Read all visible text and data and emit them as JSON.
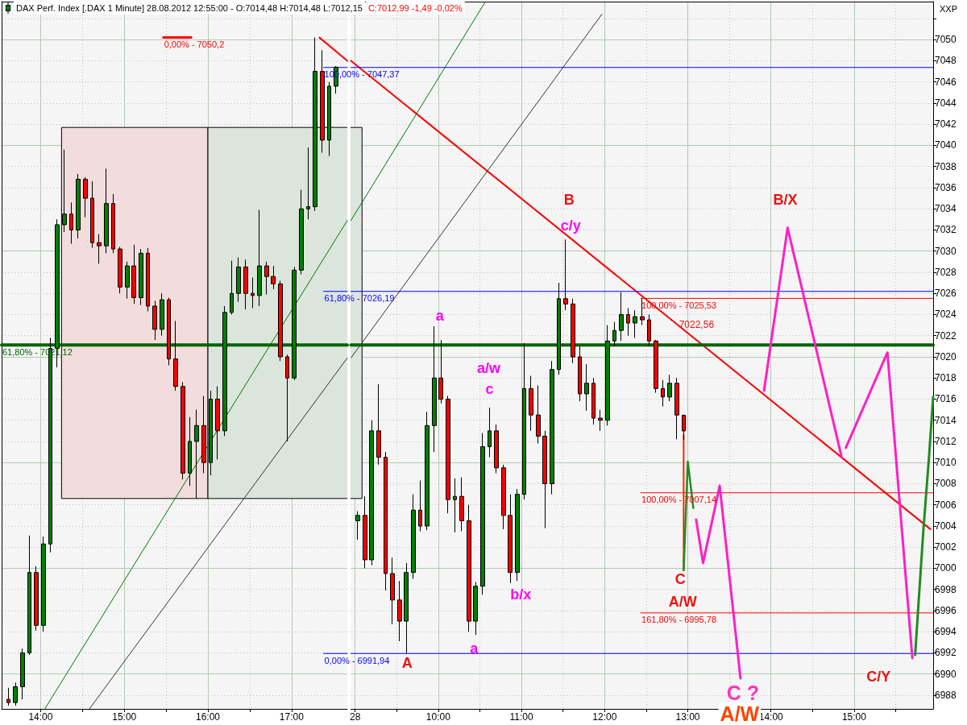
{
  "chart_data": [
    {
      "type": "candlestick",
      "title": "DAX Perf. Index [.DAX 1 Minute] 28.08.2012 12:55:00 - O:7014,48 H:7014,48 L:7012,15",
      "x": [
        "2012-08-27T13:37",
        "2012-08-27T13:42",
        "2012-08-27T13:47",
        "2012-08-27T13:52",
        "2012-08-27T13:57",
        "2012-08-27T14:02",
        "2012-08-27T14:07",
        "2012-08-27T14:12",
        "2012-08-27T14:17",
        "2012-08-27T14:22",
        "2012-08-27T14:27",
        "2012-08-27T14:32",
        "2012-08-27T14:37",
        "2012-08-27T14:42",
        "2012-08-27T14:47",
        "2012-08-27T14:52",
        "2012-08-27T14:57",
        "2012-08-27T15:02",
        "2012-08-27T15:07",
        "2012-08-27T15:12",
        "2012-08-27T15:17",
        "2012-08-27T15:22",
        "2012-08-27T15:27",
        "2012-08-27T15:32",
        "2012-08-27T15:37",
        "2012-08-27T15:42",
        "2012-08-27T15:47",
        "2012-08-27T15:52",
        "2012-08-27T15:57",
        "2012-08-27T16:02",
        "2012-08-27T16:07",
        "2012-08-27T16:12",
        "2012-08-27T16:17",
        "2012-08-27T16:22",
        "2012-08-27T16:27",
        "2012-08-27T16:32",
        "2012-08-27T16:37",
        "2012-08-27T16:42",
        "2012-08-27T16:47",
        "2012-08-27T16:52",
        "2012-08-27T16:57",
        "2012-08-27T17:02",
        "2012-08-27T17:07",
        "2012-08-27T17:12",
        "2012-08-27T17:17",
        "2012-08-27T17:22",
        "2012-08-27T17:27",
        "2012-08-27T17:32"
      ],
      "ohlc": [
        [
          6987.6,
          6988.7,
          6987.0,
          6987.3
        ],
        [
          6987.3,
          6989.2,
          6987.0,
          6988.8
        ],
        [
          6988.8,
          6992.4,
          6987.6,
          6992.0
        ],
        [
          6992.0,
          7003.1,
          6991.8,
          6999.6
        ],
        [
          6999.6,
          7000.2,
          6994.1,
          6994.6
        ],
        [
          6994.6,
          7003.0,
          6994.0,
          7002.3
        ],
        [
          7002.3,
          7021.8,
          7001.5,
          7020.8
        ],
        [
          7020.8,
          7033.0,
          7019.0,
          7032.5
        ],
        [
          7032.5,
          7039.6,
          7031.8,
          7033.5
        ],
        [
          7033.5,
          7034.6,
          7030.7,
          7032.0
        ],
        [
          7032.0,
          7037.3,
          7031.2,
          7036.8
        ],
        [
          7036.8,
          7037.0,
          7033.2,
          7035.0
        ],
        [
          7035.0,
          7036.6,
          7030.3,
          7030.8
        ],
        [
          7030.8,
          7031.6,
          7028.8,
          7030.5
        ],
        [
          7030.5,
          7037.8,
          7029.8,
          7034.5
        ],
        [
          7034.5,
          7035.4,
          7029.8,
          7030.2
        ],
        [
          7030.2,
          7030.4,
          7026.0,
          7026.6
        ],
        [
          7026.6,
          7029.0,
          7025.5,
          7028.6
        ],
        [
          7028.6,
          7030.6,
          7025.0,
          7025.6
        ],
        [
          7025.6,
          7030.2,
          7024.9,
          7029.8
        ],
        [
          7029.8,
          7030.3,
          7024.3,
          7024.8
        ],
        [
          7024.8,
          7025.3,
          7021.6,
          7022.6
        ],
        [
          7022.6,
          7026.0,
          7022.0,
          7025.4
        ],
        [
          7025.4,
          7025.6,
          7019.2,
          7019.8
        ],
        [
          7019.8,
          7023.4,
          7016.8,
          7017.2
        ],
        [
          7017.2,
          7017.6,
          7008.4,
          7009.0
        ],
        [
          7009.0,
          7014.3,
          7007.8,
          7012.0
        ],
        [
          7012.0,
          7015.0,
          7006.6,
          7013.5
        ],
        [
          7013.5,
          7016.3,
          7009.0,
          7010.0
        ],
        [
          7010.0,
          7016.8,
          7008.8,
          7016.0
        ],
        [
          7016.0,
          7017.2,
          7010.3,
          7013.0
        ],
        [
          7013.0,
          7024.8,
          7012.5,
          7024.2
        ],
        [
          7024.2,
          7029.1,
          7024.0,
          7026.0
        ],
        [
          7026.0,
          7029.4,
          7025.2,
          7028.5
        ],
        [
          7028.5,
          7029.2,
          7024.5,
          7026.0
        ],
        [
          7026.0,
          7027.5,
          7024.6,
          7025.8
        ],
        [
          7025.8,
          7033.9,
          7024.8,
          7028.6
        ],
        [
          7028.6,
          7029.0,
          7025.9,
          7027.6
        ],
        [
          7027.6,
          7028.6,
          7026.4,
          7026.9
        ],
        [
          7026.9,
          7027.2,
          7019.6,
          7020.0
        ],
        [
          7020.0,
          7020.2,
          7012.0,
          7018.0
        ],
        [
          7018.0,
          7028.5,
          7017.8,
          7028.2
        ],
        [
          7028.2,
          7035.8,
          7027.8,
          7034.0
        ],
        [
          7034.0,
          7039.8,
          7033.0,
          7034.2
        ],
        [
          7034.2,
          7050.2,
          7033.8,
          7047.0
        ],
        [
          7047.0,
          7049.0,
          7039.3,
          7040.5
        ],
        [
          7040.5,
          7046.0,
          7039.0,
          7045.6
        ],
        [
          7045.6,
          7047.5,
          7044.9,
          7047.4
        ]
      ],
      "colors": [
        "#ff0000",
        "#008000",
        "#008000",
        "#008000",
        "#ff0000",
        "#008000",
        "#008000",
        "#008000",
        "#008000",
        "#ff0000",
        "#008000",
        "#ff0000",
        "#ff0000",
        "#ff0000",
        "#008000",
        "#ff0000",
        "#ff0000",
        "#008000",
        "#ff0000",
        "#008000",
        "#ff0000",
        "#ff0000",
        "#008000",
        "#ff0000",
        "#ff0000",
        "#ff0000",
        "#008000",
        "#008000",
        "#ff0000",
        "#008000",
        "#ff0000",
        "#008000",
        "#008000",
        "#008000",
        "#ff0000",
        "#ff0000",
        "#008000",
        "#ff0000",
        "#ff0000",
        "#ff0000",
        "#ff0000",
        "#008000",
        "#008000",
        "#008000",
        "#008000",
        "#ff0000",
        "#008000",
        "#008000"
      ],
      "series": [
        {
          "type": "histogram",
          "bins": [
            "2012-08-27T14:15",
            "2012-08-27T16:00",
            "2012-08-27T17:40"
          ],
          "values": [
            35.1,
            35.1
          ],
          "base": [
            7006.6,
            7006.6
          ],
          "colors": [
            "#f2dcdc",
            "#dce5dc"
          ]
        },
        {
          "type": "line",
          "x": [
            "2012-08-27T17:20",
            "2012-08-27T17:40"
          ],
          "values": [
            7050.2,
            7048.0
          ],
          "color": "#ff0000"
        },
        {
          "type": "line",
          "x": [
            "2012-08-27T14:03",
            "2012-08-27T17:40"
          ],
          "values": [
            6986.7,
            7032.9
          ],
          "color": "#007800"
        },
        {
          "type": "line",
          "x": [
            "2012-08-27T14:35",
            "2012-08-27T17:40"
          ],
          "values": [
            6986.7,
            7019.9
          ],
          "color": "#333333"
        },
        {
          "type": "line",
          "name": "0,00% - 7050,2",
          "x": [
            "2012-08-27T15:28",
            "2012-08-27T15:48"
          ],
          "values": [
            7050.2,
            7050.2
          ],
          "color": "#ff0000"
        },
        {
          "type": "line",
          "name": "100,00% - 7047,37",
          "x": [
            "2012-08-27T17:23",
            "2012-08-27T17:40"
          ],
          "values": [
            7047.37,
            7047.37
          ],
          "color": "#0000ff"
        },
        {
          "type": "line",
          "name": "61,80% - 7026,19",
          "x": [
            "2012-08-27T17:23",
            "2012-08-27T17:40"
          ],
          "values": [
            7026.19,
            7026.19
          ],
          "color": "#0000ff"
        },
        {
          "type": "line",
          "name": "0,00% - 6991,94",
          "x": [
            "2012-08-27T17:23",
            "2012-08-27T17:40"
          ],
          "values": [
            6991.94,
            6991.94
          ],
          "color": "#0000ff"
        },
        {
          "type": "line",
          "name": "61,80% - 7021,12",
          "x": [
            "2012-08-27T13:32",
            "2012-08-27T17:40"
          ],
          "values": [
            7021.12,
            7021.12
          ],
          "color": "#006400"
        }
      ],
      "xlim": [
        "2012-08-27T13:32",
        "2012-08-27T17:40"
      ],
      "ylim": [
        6986.7,
        7053.6
      ],
      "xticks": [
        {
          "value": "2012-08-27T14:00",
          "label": "14:00"
        },
        {
          "value": "2012-08-27T14:30",
          "label": null
        },
        {
          "value": "2012-08-27T15:00",
          "label": "15:00"
        },
        {
          "value": "2012-08-27T15:30",
          "label": null
        },
        {
          "value": "2012-08-27T16:00",
          "label": "16:00"
        },
        {
          "value": "2012-08-27T16:30",
          "label": null
        },
        {
          "value": "2012-08-27T17:00",
          "label": "17:00"
        }
      ],
      "yticks": [
        6988,
        6990,
        6992,
        6994,
        6996,
        6998,
        7000,
        7002,
        7004,
        7006,
        7008,
        7010,
        7012,
        7014,
        7016,
        7018,
        7020,
        7022,
        7024,
        7026,
        7028,
        7030,
        7032,
        7034,
        7036,
        7038,
        7040,
        7042,
        7044,
        7046,
        7048,
        7050,
        {
          "value": 7052,
          "label": null
        }
      ],
      "grid": true,
      "tick_labels": "x"
    },
    {
      "type": "candlestick",
      "title": "C:7012,99 -1,49 -0,02%",
      "ylabel": "XXP",
      "x": [
        "2012-08-28T09:02",
        "2012-08-28T09:07",
        "2012-08-28T09:12",
        "2012-08-28T09:17",
        "2012-08-28T09:22",
        "2012-08-28T09:27",
        "2012-08-28T09:32",
        "2012-08-28T09:37",
        "2012-08-28T09:42",
        "2012-08-28T09:47",
        "2012-08-28T09:52",
        "2012-08-28T09:57",
        "2012-08-28T10:02",
        "2012-08-28T10:07",
        "2012-08-28T10:12",
        "2012-08-28T10:17",
        "2012-08-28T10:22",
        "2012-08-28T10:27",
        "2012-08-28T10:32",
        "2012-08-28T10:37",
        "2012-08-28T10:42",
        "2012-08-28T10:47",
        "2012-08-28T10:52",
        "2012-08-28T10:57",
        "2012-08-28T11:02",
        "2012-08-28T11:07",
        "2012-08-28T11:12",
        "2012-08-28T11:17",
        "2012-08-28T11:22",
        "2012-08-28T11:27",
        "2012-08-28T11:32",
        "2012-08-28T11:37",
        "2012-08-28T11:42",
        "2012-08-28T11:47",
        "2012-08-28T11:52",
        "2012-08-28T11:57",
        "2012-08-28T12:02",
        "2012-08-28T12:07",
        "2012-08-28T12:12",
        "2012-08-28T12:17",
        "2012-08-28T12:22",
        "2012-08-28T12:27",
        "2012-08-28T12:32",
        "2012-08-28T12:37",
        "2012-08-28T12:42",
        "2012-08-28T12:47",
        "2012-08-28T12:52",
        "2012-08-28T12:57"
      ],
      "ohlc": [
        [
          7004.5,
          7005.4,
          7002.7,
          7005.0
        ],
        [
          7005.0,
          7006.8,
          7000.0,
          7000.8
        ],
        [
          7000.8,
          7014.0,
          7000.3,
          7013.0
        ],
        [
          7013.0,
          7017.4,
          7009.8,
          7010.5
        ],
        [
          7010.5,
          7011.0,
          6997.9,
          6999.5
        ],
        [
          6999.5,
          7001.0,
          6994.7,
          6997.0
        ],
        [
          6997.0,
          6998.8,
          6993.1,
          6995.0
        ],
        [
          6995.0,
          7000.5,
          6991.94,
          6999.6
        ],
        [
          6999.6,
          7007.0,
          6999.0,
          7005.5
        ],
        [
          7005.5,
          7008.3,
          7003.5,
          7004.0
        ],
        [
          7004.0,
          7014.8,
          7003.6,
          7013.5
        ],
        [
          7013.5,
          7022.9,
          7011.0,
          7018.0
        ],
        [
          7018.0,
          7021.6,
          7015.6,
          7016.0
        ],
        [
          7016.0,
          7016.3,
          7005.2,
          7006.5
        ],
        [
          7006.5,
          7008.5,
          7003.4,
          7006.8
        ],
        [
          7006.8,
          7008.6,
          7003.5,
          7004.5
        ],
        [
          7004.5,
          7006.0,
          6994.0,
          6995.0
        ],
        [
          6995.0,
          6998.7,
          6993.7,
          6998.3
        ],
        [
          6998.3,
          7012.8,
          6997.5,
          7011.5
        ],
        [
          7011.5,
          7015.2,
          7010.5,
          7013.0
        ],
        [
          7013.0,
          7013.6,
          7009.0,
          7009.5
        ],
        [
          7009.5,
          7009.8,
          7003.7,
          7005.0
        ],
        [
          7005.0,
          7007.0,
          6998.6,
          6999.6
        ],
        [
          6999.6,
          7007.5,
          6998.8,
          7007.0
        ],
        [
          7007.0,
          7021.3,
          7006.5,
          7017.0
        ],
        [
          7017.0,
          7018.2,
          7013.0,
          7014.5
        ],
        [
          7014.5,
          7017.3,
          7011.8,
          7012.5
        ],
        [
          7012.5,
          7013.0,
          7003.8,
          7008.0
        ],
        [
          7008.0,
          7019.6,
          7007.0,
          7018.8
        ],
        [
          7018.8,
          7027.0,
          7018.3,
          7025.5
        ],
        [
          7025.5,
          7031.1,
          7024.4,
          7025.0
        ],
        [
          7025.0,
          7025.5,
          7019.4,
          7020.0
        ],
        [
          7020.0,
          7021.0,
          7015.8,
          7016.5
        ],
        [
          7016.5,
          7019.3,
          7014.9,
          7017.5
        ],
        [
          7017.5,
          7018.0,
          7013.6,
          7014.2
        ],
        [
          7014.2,
          7015.0,
          7013.0,
          7014.0
        ],
        [
          7014.0,
          7023.0,
          7013.5,
          7021.5
        ],
        [
          7021.5,
          7023.3,
          7021.0,
          7022.5
        ],
        [
          7022.5,
          7026.1,
          7021.5,
          7024.0
        ],
        [
          7024.0,
          7024.6,
          7022.0,
          7023.2
        ],
        [
          7023.2,
          7024.4,
          7021.8,
          7023.8
        ],
        [
          7023.8,
          7025.53,
          7023.0,
          7023.5
        ],
        [
          7023.5,
          7024.0,
          7021.0,
          7021.5
        ],
        [
          7021.5,
          7021.6,
          7016.6,
          7017.0
        ],
        [
          7017.0,
          7017.8,
          7015.3,
          7016.2
        ],
        [
          7016.2,
          7018.3,
          7015.8,
          7017.5
        ],
        [
          7017.5,
          7018.0,
          7012.2,
          7014.5
        ],
        [
          7014.48,
          7014.48,
          7012.15,
          7012.99
        ]
      ],
      "colors": [
        "#008000",
        "#ff0000",
        "#008000",
        "#ff0000",
        "#ff0000",
        "#ff0000",
        "#ff0000",
        "#008000",
        "#008000",
        "#ff0000",
        "#008000",
        "#008000",
        "#ff0000",
        "#ff0000",
        "#008000",
        "#ff0000",
        "#ff0000",
        "#008000",
        "#008000",
        "#008000",
        "#ff0000",
        "#ff0000",
        "#ff0000",
        "#008000",
        "#008000",
        "#ff0000",
        "#ff0000",
        "#ff0000",
        "#008000",
        "#008000",
        "#ff0000",
        "#ff0000",
        "#ff0000",
        "#008000",
        "#ff0000",
        "#ff0000",
        "#008000",
        "#008000",
        "#008000",
        "#ff0000",
        "#008000",
        "#ff0000",
        "#ff0000",
        "#ff0000",
        "#ff0000",
        "#008000",
        "#ff0000",
        "#ff0000"
      ],
      "series": [
        {
          "type": "histogram",
          "bins": [
            "2012-08-28T08:57",
            "2012-08-28T09:05"
          ],
          "values": [
            35.1
          ],
          "base": [
            7006.6
          ],
          "colors": [
            "#dce5dc"
          ]
        },
        {
          "type": "line",
          "x": [
            "2012-08-28T08:57",
            "2012-08-28T15:55"
          ],
          "values": [
            7048.0,
            7003.7
          ],
          "color": "#ff0000"
        },
        {
          "type": "line",
          "x": [
            "2012-08-28T08:57",
            "2012-08-28T10:34"
          ],
          "values": [
            7032.9,
            7053.6
          ],
          "color": "#007800"
        },
        {
          "type": "line",
          "x": [
            "2012-08-28T08:57",
            "2012-08-28T11:58"
          ],
          "values": [
            7019.9,
            7052.4
          ],
          "color": "#333333"
        },
        {
          "type": "line",
          "x": [
            "2012-08-28T08:57",
            "2012-08-28T15:57"
          ],
          "values": [
            7047.37,
            7047.37
          ],
          "color": "#0000ff"
        },
        {
          "type": "line",
          "x": [
            "2012-08-28T08:57",
            "2012-08-28T15:57"
          ],
          "values": [
            7026.19,
            7026.19
          ],
          "color": "#0000ff"
        },
        {
          "type": "line",
          "x": [
            "2012-08-28T08:57",
            "2012-08-28T15:57"
          ],
          "values": [
            6991.94,
            6991.94
          ],
          "color": "#0000ff"
        },
        {
          "type": "line",
          "x": [
            "2012-08-28T08:57",
            "2012-08-28T15:57"
          ],
          "values": [
            7021.12,
            7021.12
          ],
          "color": "#006400"
        },
        {
          "type": "line",
          "name": "100,00% - 7025,53",
          "x": [
            "2012-08-28T12:26",
            "2012-08-28T15:57"
          ],
          "values": [
            7025.53,
            7025.53
          ],
          "color": "#ff0000"
        },
        {
          "type": "line",
          "name": "100,00% - 7007,14",
          "x": [
            "2012-08-28T12:26",
            "2012-08-28T15:57"
          ],
          "values": [
            7007.14,
            7007.14
          ],
          "color": "#ff0000"
        },
        {
          "type": "line",
          "name": "161,80% - 6995,78",
          "x": [
            "2012-08-28T12:26",
            "2012-08-28T15:57"
          ],
          "values": [
            6995.78,
            6995.78
          ],
          "color": "#ff0000"
        },
        {
          "type": "line",
          "x": [
            "2012-08-28T12:57",
            "2012-08-28T12:57"
          ],
          "values": [
            7012.6,
            6999.8
          ],
          "color": "#ff2200"
        },
        {
          "type": "line",
          "x": [
            "2012-08-28T12:57",
            "2012-08-28T13:00",
            "2012-08-28T13:04"
          ],
          "values": [
            6999.8,
            7010.1,
            7005.7
          ],
          "color": "#228b22"
        },
        {
          "type": "line",
          "x": [
            "2012-08-28T13:06",
            "2012-08-28T13:11",
            "2012-08-28T13:23",
            "2012-08-28T13:38"
          ],
          "values": [
            7004.6,
            7000.5,
            7007.8,
            6989.6
          ],
          "color": "#ff1fc6"
        },
        {
          "type": "line",
          "x": [
            "2012-08-28T13:55",
            "2012-08-28T14:12",
            "2012-08-28T14:51"
          ],
          "values": [
            7016.8,
            7032.2,
            7010.5
          ],
          "color": "#ff1fc6"
        },
        {
          "type": "line",
          "x": [
            "2012-08-28T14:54",
            "2012-08-28T15:24",
            "2012-08-28T15:42"
          ],
          "values": [
            7011.4,
            7020.4,
            6991.5
          ],
          "color": "#ff1fc6"
        },
        {
          "type": "line",
          "x": [
            "2012-08-28T15:44",
            "2012-08-28T15:46",
            "2012-08-28T15:50",
            "2012-08-28T15:54",
            "2012-08-28T15:57"
          ],
          "values": [
            6991.8,
            6995.8,
            7003.7,
            7010.5,
            7016.2
          ],
          "color": "#228b22"
        }
      ],
      "annotations": [
        {
          "text": "B",
          "x": "2012-08-28T11:32",
          "y": 7031.1
        },
        {
          "text": "c/y",
          "x": "2012-08-28T11:32",
          "y": 7031.1
        },
        {
          "text": "a",
          "x": "2012-08-28T09:57",
          "y": 7022.9
        },
        {
          "text": "a/w",
          "x": "2012-08-28T10:37",
          "y": 7015.2
        },
        {
          "text": "c",
          "x": "2012-08-28T10:37",
          "y": 7015.2
        },
        {
          "text": "b/x",
          "x": "2012-08-28T10:52",
          "y": 6998.6
        },
        {
          "text": "a",
          "x": "2012-08-28T10:27",
          "y": 6993.7
        },
        {
          "text": "A",
          "x": "2012-08-28T09:37",
          "y": 6991.94
        },
        {
          "text": "C",
          "x": "2012-08-28T12:57",
          "y": 6999.8
        },
        {
          "text": "A/W",
          "x": "2012-08-28T12:57",
          "y": 6999.8
        },
        {
          "text": "7022,56",
          "x": "2012-08-28T12:57",
          "y": 7022.56
        },
        {
          "text": "B/X",
          "x": "2012-08-28T14:12",
          "y": 7032.2
        },
        {
          "text": "C/Y",
          "x": "2012-08-28T15:42",
          "y": 6991.5
        },
        {
          "text": "C ?",
          "x": "2012-08-28T13:38",
          "y": 6989.6
        },
        {
          "text": "A/W",
          "x": "2012-08-28T13:38",
          "y": 6989.6
        }
      ],
      "xlim": [
        "2012-08-28T08:57",
        "2012-08-28T15:57"
      ],
      "ylim": [
        6986.7,
        7053.6
      ],
      "xticks": [
        {
          "value": "2012-08-28T09:00",
          "label": "28"
        },
        {
          "value": "2012-08-28T09:30",
          "label": null
        },
        {
          "value": "2012-08-28T10:00",
          "label": "10:00"
        },
        {
          "value": "2012-08-28T10:30",
          "label": null
        },
        {
          "value": "2012-08-28T11:00",
          "label": "11:00"
        },
        {
          "value": "2012-08-28T11:30",
          "label": null
        },
        {
          "value": "2012-08-28T12:00",
          "label": "12:00"
        },
        {
          "value": "2012-08-28T12:30",
          "label": null
        },
        {
          "value": "2012-08-28T13:00",
          "label": "13:00"
        },
        {
          "value": "2012-08-28T13:30",
          "label": null
        },
        {
          "value": "2012-08-28T14:00",
          "label": "14:00"
        },
        {
          "value": "2012-08-28T14:30",
          "label": null
        },
        {
          "value": "2012-08-28T15:00",
          "label": "15:00"
        },
        {
          "value": "2012-08-28T15:30",
          "label": null
        }
      ],
      "yticks": [
        6988,
        6990,
        6992,
        6994,
        6996,
        6998,
        7000,
        7002,
        7004,
        7006,
        7008,
        7010,
        7012,
        7014,
        7016,
        7018,
        7020,
        7022,
        7024,
        7026,
        7028,
        7030,
        7032,
        7034,
        7036,
        7038,
        7040,
        7042,
        7044,
        7046,
        7048,
        7050,
        {
          "value": 7052,
          "label": null
        }
      ],
      "grid": true
    }
  ]
}
